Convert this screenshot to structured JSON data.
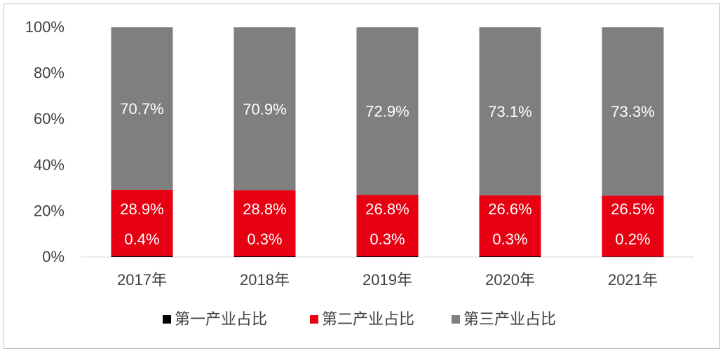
{
  "chart_data": {
    "type": "bar",
    "stacked": true,
    "title": "",
    "xlabel": "",
    "ylabel": "",
    "ylim": [
      0,
      100
    ],
    "y_ticks": [
      "0%",
      "20%",
      "40%",
      "60%",
      "80%",
      "100%"
    ],
    "categories": [
      "2017年",
      "2018年",
      "2019年",
      "2020年",
      "2021年"
    ],
    "series": [
      {
        "name": "第一产业占比",
        "color": "#000000",
        "values": [
          0.4,
          0.3,
          0.3,
          0.3,
          0.2
        ],
        "labels": [
          "0.4%",
          "0.3%",
          "0.3%",
          "0.3%",
          "0.2%"
        ]
      },
      {
        "name": "第二产业占比",
        "color": "#e60012",
        "values": [
          28.9,
          28.8,
          26.8,
          26.6,
          26.5
        ],
        "labels": [
          "28.9%",
          "28.8%",
          "26.8%",
          "26.6%",
          "26.5%"
        ]
      },
      {
        "name": "第三产业占比",
        "color": "#7f7f7f",
        "values": [
          70.7,
          70.9,
          72.9,
          73.1,
          73.3
        ],
        "labels": [
          "70.7%",
          "70.9%",
          "72.9%",
          "73.1%",
          "73.3%"
        ]
      }
    ],
    "legend_position": "bottom",
    "grid": false
  }
}
